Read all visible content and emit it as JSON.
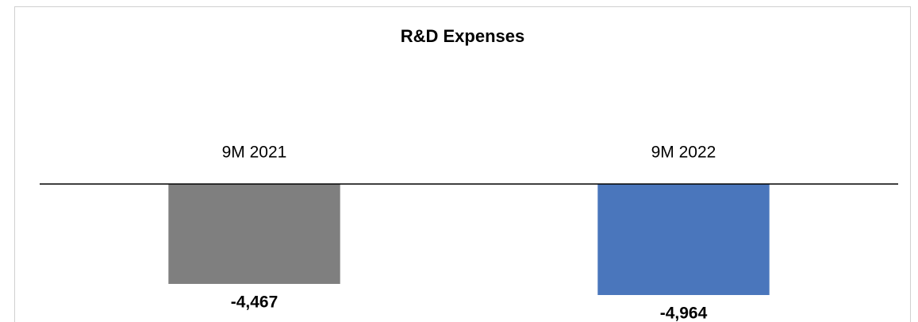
{
  "chart_data": {
    "type": "bar",
    "title": "R&D Expenses",
    "categories": [
      "9M 2021",
      "9M 2022"
    ],
    "values": [
      -4467,
      -4964
    ],
    "value_labels": [
      "-4,467",
      "-4,964"
    ],
    "colors": [
      "#7f7f7f",
      "#4a76bc"
    ],
    "ylim": [
      -6170,
      0
    ]
  }
}
